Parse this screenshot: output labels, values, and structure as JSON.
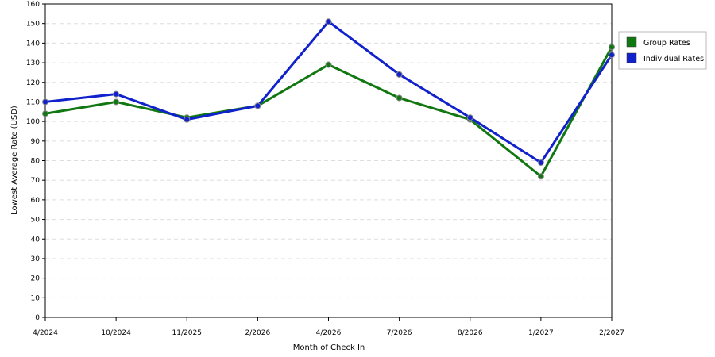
{
  "chart_data": {
    "type": "line",
    "title": "",
    "xlabel": "Month of Check In",
    "ylabel": "Lowest Average Rate (USD)",
    "categories": [
      "4/2024",
      "10/2024",
      "11/2025",
      "2/2026",
      "4/2026",
      "7/2026",
      "8/2026",
      "1/2027",
      "2/2027"
    ],
    "ylim": [
      0,
      160
    ],
    "yticks": [
      0,
      10,
      20,
      30,
      40,
      50,
      60,
      70,
      80,
      90,
      100,
      110,
      120,
      130,
      140,
      150,
      160
    ],
    "grid": true,
    "legend_position": "right",
    "series": [
      {
        "name": "Group Rates",
        "color": "#117711",
        "values": [
          104,
          110,
          102,
          108,
          129,
          112,
          101,
          72,
          138
        ]
      },
      {
        "name": "Individual Rates",
        "color": "#1122cc",
        "values": [
          110,
          114,
          101,
          108,
          151,
          124,
          102,
          79,
          134
        ]
      }
    ]
  }
}
